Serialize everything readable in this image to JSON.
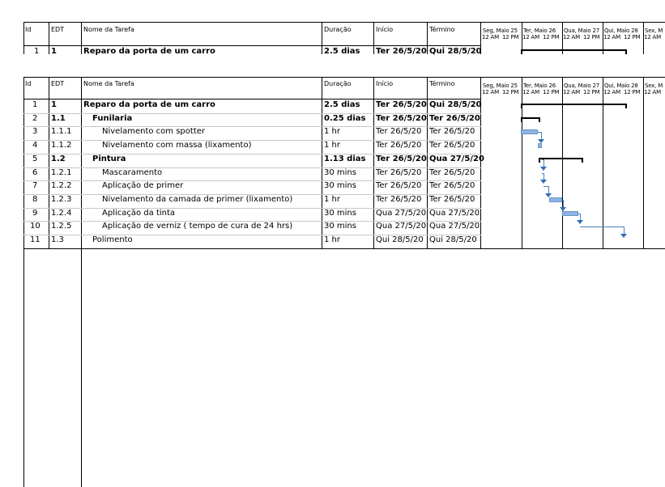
{
  "columns": {
    "id": "Id",
    "edt": "EDT",
    "name": "Nome da Tarefa",
    "duration": "Duração",
    "start": "Início",
    "finish": "Término"
  },
  "timescale": {
    "days": [
      "Seg, Maio 25",
      "Ter, Maio 26",
      "Qua, Maio 27",
      "Qui, Maio 28",
      "Sex, M"
    ],
    "ticks": [
      "12 AM",
      "12 PM",
      "12 AM",
      "12 PM",
      "12 AM",
      "12 PM",
      "12 AM",
      "12 PM",
      "12 AM"
    ]
  },
  "top_block": {
    "rows": [
      {
        "id": "1",
        "edt": "1",
        "name": "Reparo da porta de um carro",
        "duration": "2.5 dias",
        "start": "Ter 26/5/20",
        "finish": "Qui 28/5/20"
      }
    ]
  },
  "tasks": [
    {
      "id": "1",
      "edt": "1",
      "name": "Reparo da porta de um carro",
      "duration": "2.5 dias",
      "start": "Ter 26/5/20",
      "finish": "Qui 28/5/20",
      "bold": true,
      "indent": 0
    },
    {
      "id": "2",
      "edt": "1.1",
      "name": "Funilaria",
      "duration": "0.25 dias",
      "start": "Ter 26/5/20",
      "finish": "Ter 26/5/20",
      "bold": true,
      "indent": 1
    },
    {
      "id": "3",
      "edt": "1.1.1",
      "name": "Nivelamento com spotter",
      "duration": "1 hr",
      "start": "Ter 26/5/20",
      "finish": "Ter 26/5/20",
      "bold": false,
      "indent": 2
    },
    {
      "id": "4",
      "edt": "1.1.2",
      "name": "Nivelamento com massa (lixamento)",
      "duration": "1 hr",
      "start": "Ter 26/5/20",
      "finish": "Ter 26/5/20",
      "bold": false,
      "indent": 2
    },
    {
      "id": "5",
      "edt": "1.2",
      "name": "Pintura",
      "duration": "1.13 dias",
      "start": "Ter 26/5/20",
      "finish": "Qua 27/5/20",
      "bold": true,
      "indent": 1
    },
    {
      "id": "6",
      "edt": "1.2.1",
      "name": "Mascaramento",
      "duration": "30 mins",
      "start": "Ter 26/5/20",
      "finish": "Ter 26/5/20",
      "bold": false,
      "indent": 2
    },
    {
      "id": "7",
      "edt": "1.2.2",
      "name": "Aplicação de primer",
      "duration": "30 mins",
      "start": "Ter 26/5/20",
      "finish": "Ter 26/5/20",
      "bold": false,
      "indent": 2
    },
    {
      "id": "8",
      "edt": "1.2.3",
      "name": "Nivelamento da camada de primer (lixamento)",
      "duration": "1 hr",
      "start": "Ter 26/5/20",
      "finish": "Ter 26/5/20",
      "bold": false,
      "indent": 2
    },
    {
      "id": "9",
      "edt": "1.2.4",
      "name": "Aplicação da tinta",
      "duration": "30 mins",
      "start": "Qua 27/5/20",
      "finish": "Qua 27/5/20",
      "bold": false,
      "indent": 2
    },
    {
      "id": "10",
      "edt": "1.2.5",
      "name": "Aplicação de verniz ( tempo de cura de 24 hrs)",
      "duration": "30 mins",
      "start": "Qua 27/5/20",
      "finish": "Qua 27/5/20",
      "bold": false,
      "indent": 2
    },
    {
      "id": "11",
      "edt": "1.3",
      "name": "Polimento",
      "duration": "1 hr",
      "start": "Qui 28/5/20",
      "finish": "Qui 28/5/20",
      "bold": false,
      "indent": 1
    }
  ],
  "colors": {
    "task_bar": "#8db4e2",
    "summary_bar": "#000000",
    "link": "#2f6db5"
  }
}
